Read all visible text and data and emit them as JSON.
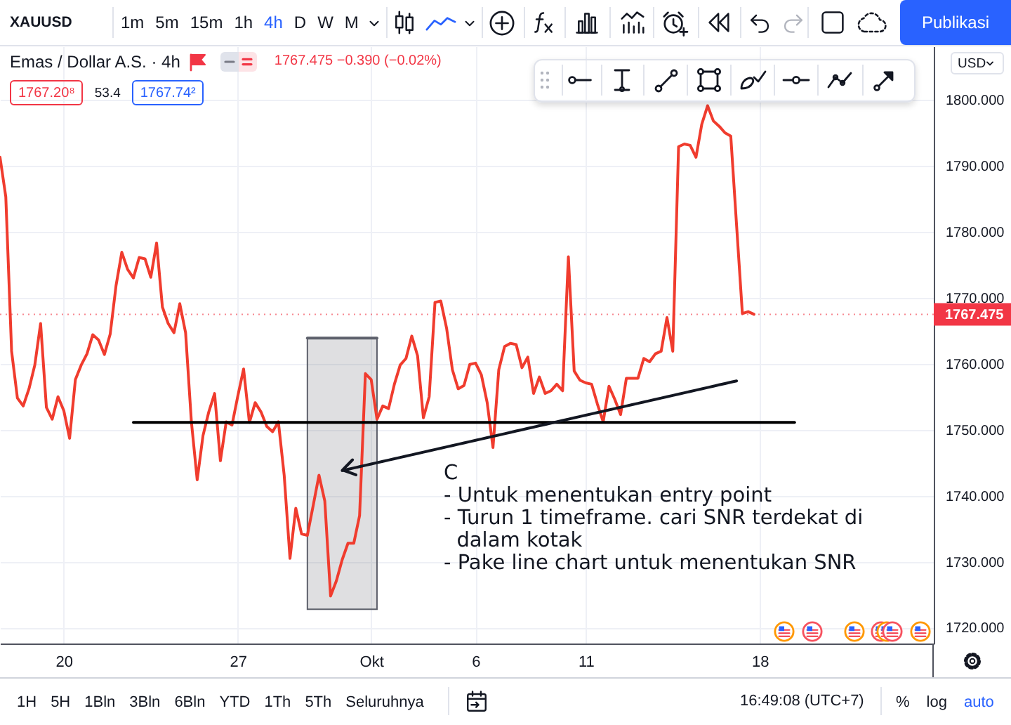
{
  "chart_data": {
    "type": "line",
    "title": "Emas / Dollar A.S. · 4h",
    "categories": [
      null,
      null,
      null,
      null,
      null,
      null,
      null,
      null,
      null,
      null,
      null,
      "20",
      null,
      null,
      null,
      null,
      null,
      null,
      null,
      null,
      null,
      null,
      null,
      null,
      null,
      null,
      null,
      null,
      null,
      null,
      null,
      null,
      null,
      null,
      null,
      null,
      null,
      null,
      null,
      null,
      null,
      "27",
      null,
      null,
      null,
      null,
      null,
      null,
      null,
      null,
      null,
      null,
      null,
      null,
      null,
      null,
      null,
      null,
      null,
      null,
      null,
      null,
      null,
      null,
      "Okt",
      null,
      null,
      null,
      null,
      null,
      null,
      null,
      null,
      null,
      null,
      null,
      null,
      null,
      null,
      null,
      null,
      null,
      "6",
      null,
      null,
      null,
      null,
      null,
      null,
      null,
      null,
      null,
      null,
      null,
      null,
      null,
      null,
      null,
      null,
      null,
      null,
      "11",
      null,
      null,
      null,
      null,
      null,
      null,
      null,
      null,
      null,
      null,
      null,
      null,
      null,
      null,
      null,
      null,
      null,
      null,
      null,
      null,
      null,
      null,
      null,
      null,
      null,
      null,
      null,
      null,
      null,
      "18",
      null,
      null,
      null,
      null,
      null,
      null,
      null,
      null,
      null,
      null,
      null,
      null,
      null,
      null,
      null,
      null,
      null,
      null,
      null,
      null,
      null,
      null,
      null,
      null,
      null,
      null,
      null,
      null,
      null,
      null
    ],
    "series": [
      {
        "type": "line",
        "color": "#5d606b",
        "values": [
          null,
          null,
          null,
          null,
          null,
          null,
          null,
          null,
          null,
          null,
          null,
          null,
          null,
          null,
          null,
          null,
          null,
          null,
          null,
          null,
          null,
          null,
          null,
          null,
          null,
          null,
          null,
          null,
          null,
          null,
          null,
          null,
          null,
          null,
          null,
          null,
          null,
          null,
          null,
          null,
          null,
          null,
          null,
          null,
          null,
          null,
          null,
          null,
          null,
          null,
          null,
          null,
          null,
          1763.9,
          1763.9,
          1763.9,
          1763.9,
          1763.9,
          1763.9,
          1763.9,
          1763.9,
          1763.9,
          1763.9,
          1763.9,
          1763.9,
          1763.9,
          null,
          null,
          null,
          null,
          null,
          null,
          null,
          null,
          null,
          null,
          null,
          null,
          null,
          null,
          null,
          null,
          null,
          null,
          null,
          null,
          null,
          null,
          null,
          null,
          null,
          null,
          null,
          null,
          null,
          null,
          null,
          null,
          null,
          null,
          null,
          null,
          null,
          null,
          null,
          null,
          null,
          null,
          null,
          null,
          null,
          null,
          null,
          null,
          null,
          null,
          null,
          null,
          null,
          null,
          null,
          null,
          null,
          null,
          null,
          null,
          null,
          null,
          null,
          null,
          null,
          null,
          null,
          null,
          null,
          null,
          null,
          null,
          null,
          null,
          null,
          null,
          null,
          null,
          null,
          null,
          null,
          null,
          null,
          null,
          null,
          null,
          null,
          null,
          null,
          null,
          null,
          null,
          null,
          null,
          null,
          null
        ],
        "upper": [
          null,
          null,
          null,
          null,
          null,
          null,
          null,
          null,
          null,
          null,
          null,
          null,
          null,
          null,
          null,
          null,
          null,
          null,
          null,
          null,
          null,
          null,
          null,
          null,
          null,
          null,
          null,
          null,
          null,
          null,
          null,
          null,
          null,
          null,
          null,
          null,
          null,
          null,
          null,
          null,
          null,
          null,
          null,
          null,
          null,
          null,
          null,
          null,
          null,
          null,
          null,
          null,
          null,
          1763.9,
          1763.9,
          1763.9,
          1763.9,
          1763.9,
          1763.9,
          1763.9,
          1763.9,
          1763.9,
          1763.9,
          1763.9,
          1763.9,
          1763.9,
          null,
          null,
          null,
          null,
          null,
          null,
          null,
          null,
          null,
          null,
          null,
          null,
          null,
          null,
          null,
          null,
          null,
          null,
          null,
          null,
          null,
          null,
          null,
          null,
          null,
          null,
          null,
          null,
          null,
          null,
          null,
          null,
          null,
          null,
          null,
          null,
          null,
          null,
          null,
          null,
          null,
          null,
          null,
          null,
          null,
          null,
          null,
          null,
          null,
          null,
          null,
          null,
          null,
          null,
          null,
          null,
          null,
          null,
          null,
          null,
          null,
          null,
          null,
          null,
          null,
          null,
          null,
          null,
          null,
          null,
          null,
          null,
          null,
          null,
          null,
          null,
          null,
          null,
          null,
          null,
          null,
          null,
          null,
          null,
          null,
          null,
          null,
          null,
          null,
          null,
          null,
          null,
          null,
          null,
          null,
          null
        ],
        "lower": [
          null,
          null,
          null,
          null,
          null,
          null,
          null,
          null,
          null,
          null,
          null,
          null,
          null,
          null,
          null,
          null,
          null,
          null,
          null,
          null,
          null,
          null,
          null,
          null,
          null,
          null,
          null,
          null,
          null,
          null,
          null,
          null,
          null,
          null,
          null,
          null,
          null,
          null,
          null,
          null,
          null,
          null,
          null,
          null,
          null,
          null,
          null,
          null,
          null,
          null,
          null,
          null,
          null,
          1722.8,
          1722.8,
          1722.8,
          1722.8,
          1722.8,
          1722.8,
          1722.8,
          1722.8,
          1722.8,
          1722.8,
          1722.8,
          1722.8,
          1722.8,
          null,
          null,
          null,
          null,
          null,
          null,
          null,
          null,
          null,
          null,
          null,
          null,
          null,
          null,
          null,
          null,
          null,
          null,
          null,
          null,
          null,
          null,
          null,
          null,
          null,
          null,
          null,
          null,
          null,
          null,
          null,
          null,
          null,
          null,
          null,
          null,
          null,
          null,
          null,
          null,
          null,
          null,
          null,
          null,
          null,
          null,
          null,
          null,
          null,
          null,
          null,
          null,
          null,
          null,
          null,
          null,
          null,
          null,
          null,
          null,
          null,
          null,
          null,
          null,
          null,
          null,
          null,
          null,
          null,
          null,
          null,
          null,
          null,
          null,
          null,
          null,
          null,
          null,
          null,
          null,
          null,
          null,
          null,
          null,
          null,
          null,
          null,
          null,
          null,
          null,
          null,
          null,
          null,
          null,
          null,
          null
        ]
      },
      {
        "color": "#f03c2e",
        "values": [
          1791.3,
          1785.3,
          1761.9,
          1754.8,
          1753.6,
          1756.2,
          1759.8,
          1766.1,
          1753.4,
          1751.6,
          1755.0,
          1752.9,
          1748.7,
          1757.6,
          1759.8,
          1761.5,
          1764.4,
          1763.6,
          1761.4,
          1764.5,
          1771.8,
          1776.9,
          1774.3,
          1773.0,
          1776.1,
          1775.9,
          1773.1,
          1778.3,
          1768.6,
          1766.1,
          1764.7,
          1769.1,
          1764.7,
          1751.2,
          1742.4,
          1749.1,
          1752.7,
          1755.5,
          1745.3,
          1751.2,
          1750.7,
          1755.1,
          1759.2,
          1751.1,
          1754.1,
          1752.7,
          1750.5,
          1749.7,
          1751.2,
          1743.1,
          1730.5,
          1738.1,
          1734.2,
          1734.0,
          1738.5,
          1743.1,
          1739.2,
          1724.8,
          1727.1,
          1730.3,
          1732.8,
          1732.8,
          1737.0,
          1758.5,
          1757.6,
          1751.6,
          1753.6,
          1753.2,
          1756.9,
          1759.8,
          1760.8,
          1764.2,
          1761.2,
          1751.8,
          1755.0,
          1769.3,
          1769.5,
          1765.4,
          1759.1,
          1756.2,
          1756.7,
          1759.9,
          1760.1,
          1758.3,
          1754.1,
          1747.3,
          1759.1,
          1762.6,
          1763.1,
          1762.9,
          1759.4,
          1761.0,
          1755.5,
          1758.0,
          1755.5,
          1755.9,
          1756.9,
          1755.9,
          1776.2,
          1758.9,
          1757.5,
          1757.1,
          1756.9,
          1753.9,
          1751.2,
          1756.6,
          1754.6,
          1752.3,
          1757.8,
          1757.8,
          1757.8,
          1760.8,
          1760.3,
          1761.5,
          1761.9,
          1767.0,
          1761.9,
          1792.9,
          1793.3,
          1793.1,
          1791.3,
          1796.3,
          1799.1,
          1796.8,
          1796.0,
          1795.0,
          1794.5,
          1781.0,
          1767.6,
          1767.9,
          1767.5,
          null,
          null,
          null,
          null,
          null,
          null,
          null,
          null,
          null,
          null,
          null,
          null,
          null,
          null,
          null,
          null,
          null,
          null,
          null,
          null,
          null,
          null,
          null,
          null,
          null,
          null,
          null,
          null,
          null,
          null,
          null
        ]
      },
      {
        "type": "line",
        "color": "#000000",
        "values": [
          null,
          null,
          null,
          null,
          null,
          null,
          null,
          null,
          null,
          null,
          null,
          null,
          null,
          null,
          null,
          null,
          null,
          null,
          null,
          null,
          null,
          null,
          null,
          1751.1,
          1751.1,
          1751.1,
          1751.1,
          1751.1,
          1751.1,
          1751.1,
          1751.1,
          1751.1,
          1751.1,
          1751.1,
          1751.1,
          1751.1,
          1751.1,
          1751.1,
          1751.1,
          1751.1,
          1751.1,
          1751.1,
          1751.1,
          1751.1,
          1751.1,
          1751.1,
          1751.1,
          1751.1,
          1751.1,
          1751.1,
          1751.1,
          1751.1,
          1751.1,
          1751.1,
          1751.1,
          1751.1,
          1751.1,
          1751.1,
          1751.1,
          1751.1,
          1751.1,
          1751.1,
          1751.1,
          1751.1,
          1751.1,
          1751.1,
          1751.1,
          1751.1,
          1751.1,
          1751.1,
          1751.1,
          1751.1,
          1751.1,
          1751.1,
          1751.1,
          1751.1,
          1751.1,
          1751.1,
          1751.1,
          1751.1,
          1751.1,
          1751.1,
          1751.1,
          1751.1,
          1751.1,
          1751.1,
          1751.1,
          1751.1,
          1751.1,
          1751.1,
          1751.1,
          1751.1,
          1751.1,
          1751.1,
          1751.1,
          1751.1,
          1751.1,
          1751.1,
          1751.1,
          1751.1,
          1751.1,
          1751.1,
          1751.1,
          1751.1,
          1751.1,
          1751.1,
          1751.1,
          1751.1,
          1751.1,
          1751.1,
          1751.1,
          1751.1,
          1751.1,
          1751.1,
          1751.1,
          1751.1,
          1751.1,
          1751.1,
          1751.1,
          1751.1,
          1751.1,
          1751.1,
          1751.1,
          1751.1,
          1751.1,
          1751.1,
          1751.1,
          1751.1,
          1751.1,
          1751.1,
          1751.1,
          1751.1,
          1751.1,
          1751.1,
          1751.1,
          1751.1,
          1751.1,
          1751.1,
          null,
          null,
          null,
          null,
          null,
          null,
          null,
          null,
          null,
          null,
          null,
          null,
          null,
          null,
          null,
          null,
          null,
          null,
          null,
          null,
          null,
          null,
          null,
          null
        ]
      },
      {
        "type": "line",
        "color": "#131722",
        "values": [
          null,
          null,
          null,
          null,
          null,
          null,
          null,
          null,
          null,
          null,
          null,
          null,
          null,
          null,
          null,
          null,
          null,
          null,
          null,
          null,
          null,
          null,
          null,
          null,
          null,
          null,
          null,
          null,
          null,
          null,
          null,
          null,
          null,
          null,
          null,
          null,
          null,
          null,
          null,
          null,
          null,
          null,
          null,
          null,
          null,
          null,
          null,
          null,
          null,
          null,
          null,
          null,
          null,
          null,
          null,
          null,
          null,
          null,
          null,
          1743.8,
          1744.0,
          1744.2,
          1744.4,
          1744.6,
          1744.8,
          1745.0,
          1745.2,
          1745.4,
          1745.6,
          1745.8,
          1746.0,
          1746.2,
          1746.4,
          1746.6,
          1746.8,
          1747.0,
          1747.2,
          1747.4,
          1747.6,
          1747.8,
          1748.0,
          1748.2,
          1748.4,
          1748.6,
          1748.8,
          1749.0,
          1749.2,
          1749.4,
          1749.6,
          1749.8,
          1750.0,
          1750.2,
          1750.4,
          1750.6,
          1750.8,
          1751.0,
          1751.2,
          1751.4,
          1751.6,
          1751.8,
          1752.0,
          1752.2,
          1752.4,
          1752.6,
          1752.8,
          1753.0,
          1753.2,
          1753.4,
          1753.6,
          1753.8,
          1754.0,
          1754.2,
          1754.4,
          1754.6,
          1754.8,
          1755.0,
          1755.2,
          1755.4,
          1755.6,
          1755.8,
          1756.0,
          1756.2,
          1756.4,
          1756.6,
          1756.8,
          1757.0,
          1757.2,
          1757.4,
          null,
          null,
          null,
          null,
          null,
          null,
          null,
          null,
          null,
          null,
          null,
          null,
          null,
          null,
          null,
          null,
          null,
          null,
          null,
          null,
          null,
          null,
          null,
          null,
          null,
          null,
          null,
          null,
          null,
          null,
          null,
          null,
          null,
          null
        ]
      }
    ],
    "ylim": [
      1717.6,
      1808.1
    ],
    "yticks": [
      {
        "value": 1720,
        "label": "1720.000"
      },
      {
        "value": 1730,
        "label": "1730.000"
      },
      {
        "value": 1740,
        "label": "1740.000"
      },
      {
        "value": 1750,
        "label": "1750.000"
      },
      {
        "value": 1760,
        "label": "1760.000"
      },
      {
        "value": 1770,
        "label": "1770.000"
      },
      {
        "value": 1780,
        "label": "1780.000"
      },
      {
        "value": 1790,
        "label": "1790.000"
      },
      {
        "value": 1800,
        "label": "1800.000"
      }
    ],
    "grid": true,
    "ref_lines": [
      {
        "axis": "y",
        "value": 1767.475,
        "label": "1767.475",
        "color": "#f23645",
        "line_style": "dotted"
      }
    ],
    "annotations": [
      "C\n- Untuk menentukan entry point\n- Turun 1 timeframe. cari SNR terdekat di\n  dalam kotak\n- Pake line chart untuk menentukan SNR",
      "XAUUSD",
      "1767.475 −0.390 (−0.02%)",
      "1767.20⁸",
      "53.4",
      "1767.74²",
      "1m 5m 15m 1h 4h D W M",
      "Publikasi",
      "USD",
      "1H 5H 1Bln 3Bln 6Bln YTD 1Th 5Th Seluruhnya",
      "16:49:08 (UTC+7)",
      "% log auto"
    ]
  }
}
